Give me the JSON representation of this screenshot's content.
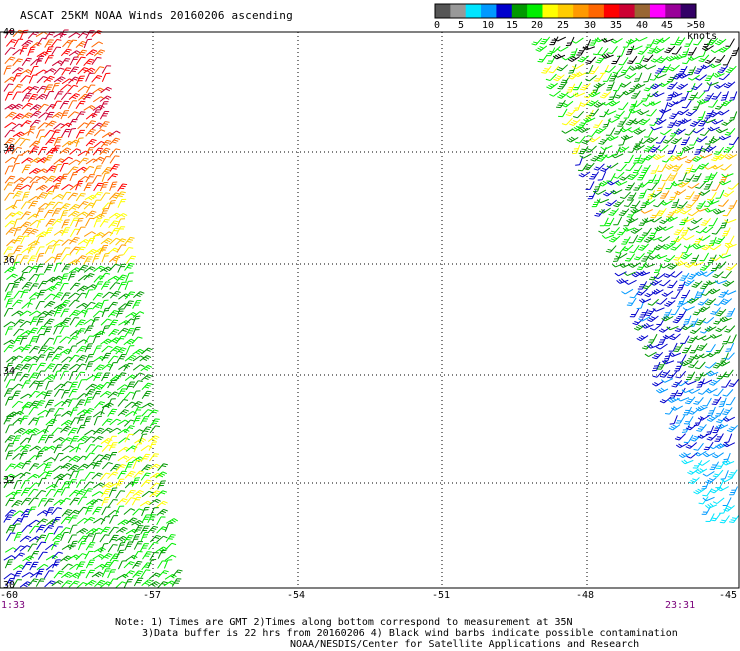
{
  "title": "ASCAT 25KM NOAA Winds 20160206 ascending",
  "colorbar": {
    "labels": [
      "0",
      "5",
      "10",
      "15",
      "20",
      "25",
      "30",
      "35",
      "40",
      "45",
      ">50 knots"
    ],
    "colors": [
      "#555555",
      "#999999",
      "#00e5ff",
      "#0099ff",
      "#0000cc",
      "#009900",
      "#00ee00",
      "#ffff00",
      "#ffcc00",
      "#ff9900",
      "#ff6600",
      "#ff0000",
      "#cc0033",
      "#996633",
      "#ff00ff",
      "#990099",
      "#330066"
    ]
  },
  "axes": {
    "lat_labels": [
      "40",
      "38",
      "36",
      "34",
      "32",
      "30"
    ],
    "lon_labels": [
      "-60",
      "-57",
      "-54",
      "-51",
      "-48",
      "-45"
    ]
  },
  "times": {
    "left": "1:33",
    "right": "23:31"
  },
  "notes": {
    "line1": "Note: 1) Times are GMT 2)Times along bottom correspond to measurement at 35N",
    "line2": "3)Data buffer is 22 hrs from 20160206 4) Black wind barbs indicate possible contamination",
    "line3": "NOAA/NESDIS/Center for Satellite Applications and Research"
  }
}
